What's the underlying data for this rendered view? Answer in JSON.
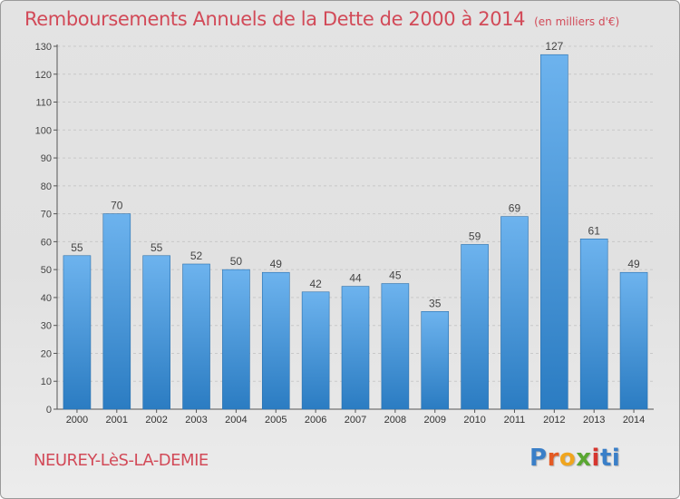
{
  "header": {
    "title": "Remboursements Annuels de la Dette de 2000 à 2014",
    "unit": "(en milliers d'€)"
  },
  "footer": {
    "commune": "NEUREY-LèS-LA-DEMIE",
    "logo_letters": [
      "P",
      "r",
      "o",
      "x",
      "i",
      "ti"
    ]
  },
  "colors": {
    "title": "#d24a58",
    "bar_light": "#6db3ee",
    "bar_dark": "#2b7cc2",
    "grid": "#c8c8c8"
  },
  "chart_data": {
    "type": "bar",
    "title": "Remboursements Annuels de la Dette de 2000 à 2014",
    "ylabel": "",
    "xlabel": "",
    "categories": [
      "2000",
      "2001",
      "2002",
      "2003",
      "2004",
      "2005",
      "2006",
      "2007",
      "2008",
      "2009",
      "2010",
      "2011",
      "2012",
      "2013",
      "2014"
    ],
    "values": [
      55,
      70,
      55,
      52,
      50,
      49,
      42,
      44,
      45,
      35,
      59,
      69,
      127,
      61,
      49
    ],
    "ylim": [
      0,
      130
    ],
    "yticks": [
      0,
      10,
      20,
      30,
      40,
      50,
      60,
      70,
      80,
      90,
      100,
      110,
      120,
      130
    ],
    "grid": "dashed horizontal"
  }
}
